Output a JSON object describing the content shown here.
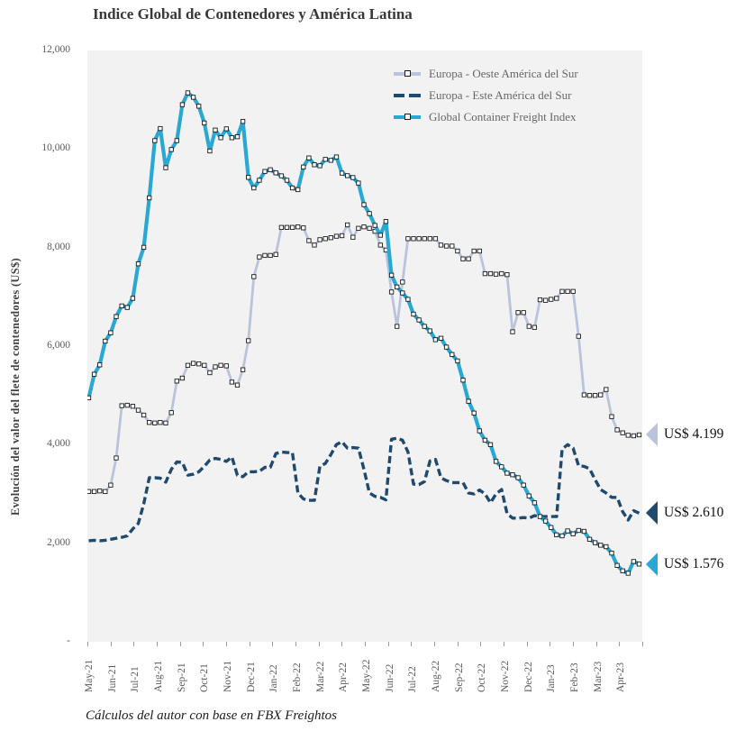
{
  "title": "Indice Global de Contenedores y América Latina",
  "source_note": "Cálculos del autor con base en FBX Freightos",
  "colors": {
    "plot_background": "#f2f2f2",
    "axis_text": "#595959",
    "oeste": "#b9c3dc",
    "este": "#1f4a6e",
    "gcfi": "#29a8d4"
  },
  "annotations": [
    {
      "label": "US$ 4.199",
      "value": 4199,
      "series": "Europa - Oeste América del Sur",
      "color": "#b9c3dc"
    },
    {
      "label": "US$ 2.610",
      "value": 2610,
      "series": "Europa - Este América del Sur",
      "color": "#1f4a6e"
    },
    {
      "label": "US$ 1.576",
      "value": 1576,
      "series": "Global Container Freight Index",
      "color": "#29a8d4"
    }
  ],
  "chart_data": {
    "type": "line",
    "title": "Indice Global de Contenedores y América Latina",
    "xlabel": "",
    "ylabel": "Evolución del valor del flete de contenedores (US$)",
    "ylim": [
      0,
      12000
    ],
    "grid": false,
    "legend_position": "top-right-inside",
    "x_frequency": "weekly",
    "y_ticks": [
      {
        "label": "12,000",
        "value": 12000
      },
      {
        "label": "10,000",
        "value": 10000
      },
      {
        "label": "8,000",
        "value": 8000
      },
      {
        "label": "6,000",
        "value": 6000
      },
      {
        "label": "4,000",
        "value": 4000
      },
      {
        "label": "2,000",
        "value": 2000
      },
      {
        "label": "-",
        "value": 0
      }
    ],
    "categories": [
      "May-21",
      "Jun-21",
      "Jul-21",
      "Aug-21",
      "Sep-21",
      "Oct-21",
      "Nov-21",
      "Dec-21",
      "Jan-22",
      "Feb-22",
      "Mar-22",
      "Apr-22",
      "May-22",
      "Jun-22",
      "Jul-22",
      "Aug-22",
      "Sep-22",
      "Oct-22",
      "Nov-22",
      "Dec-22",
      "Jan-23",
      "Feb-23",
      "Mar-23",
      "Apr-23"
    ],
    "series": [
      {
        "name": "Europa - Oeste América del Sur",
        "color": "#b9c3dc",
        "style": "solid",
        "marker": "square",
        "end_label": "US$ 4.199",
        "values": [
          3050,
          3050,
          3060,
          3050,
          3180,
          3730,
          4790,
          4800,
          4780,
          4700,
          4600,
          4450,
          4440,
          4450,
          4440,
          4650,
          5290,
          5350,
          5610,
          5650,
          5640,
          5610,
          5460,
          5580,
          5610,
          5600,
          5270,
          5210,
          5520,
          6110,
          7410,
          7810,
          7840,
          7840,
          7860,
          8410,
          8410,
          8410,
          8420,
          8400,
          8140,
          8050,
          8160,
          8180,
          8200,
          8230,
          8240,
          8460,
          8210,
          8390,
          8420,
          8390,
          8330,
          8050,
          7950,
          7100,
          6400,
          7300,
          8180,
          8180,
          8180,
          8180,
          8180,
          8180,
          8050,
          8030,
          8030,
          7930,
          7770,
          7770,
          7930,
          7930,
          7470,
          7470,
          7460,
          7470,
          7450,
          6290,
          6680,
          6680,
          6400,
          6380,
          6940,
          6930,
          6950,
          6970,
          7110,
          7110,
          7110,
          6200,
          5010,
          5000,
          5000,
          5010,
          5120,
          4570,
          4300,
          4240,
          4190,
          4180,
          4199
        ]
      },
      {
        "name": "Europa - Este América del Sur",
        "color": "#1f4a6e",
        "style": "dashed",
        "marker": "none",
        "end_label": "US$ 2.610",
        "values": [
          2050,
          2060,
          2050,
          2060,
          2080,
          2100,
          2120,
          2150,
          2290,
          2400,
          2800,
          3330,
          3330,
          3320,
          3240,
          3500,
          3650,
          3640,
          3380,
          3400,
          3450,
          3560,
          3690,
          3720,
          3700,
          3660,
          3750,
          3380,
          3350,
          3450,
          3450,
          3460,
          3540,
          3540,
          3820,
          3850,
          3840,
          3840,
          3020,
          2900,
          2870,
          2870,
          3560,
          3620,
          3800,
          4000,
          4060,
          3930,
          3940,
          3930,
          3500,
          3020,
          2950,
          2930,
          2880,
          4110,
          4130,
          4090,
          3850,
          3200,
          3190,
          3250,
          3670,
          3700,
          3330,
          3270,
          3230,
          3230,
          3230,
          3020,
          3000,
          3080,
          3000,
          2820,
          3000,
          3090,
          2600,
          2510,
          2510,
          2520,
          2510,
          2560,
          2540,
          2540,
          2540,
          2540,
          3910,
          4000,
          3930,
          3570,
          3560,
          3510,
          3290,
          3090,
          3020,
          2930,
          2930,
          2640,
          2470,
          2660,
          2610
        ]
      },
      {
        "name": "Global Container Freight Index",
        "color": "#29a8d4",
        "style": "solid",
        "marker": "square",
        "end_label": "US$ 1.576",
        "values": [
          4950,
          5430,
          5620,
          6100,
          6270,
          6600,
          6815,
          6785,
          6970,
          7670,
          8005,
          9010,
          10170,
          10415,
          9620,
          9990,
          10170,
          10900,
          11140,
          11050,
          10870,
          10530,
          9960,
          10385,
          10230,
          10410,
          10230,
          10250,
          10560,
          9425,
          9210,
          9365,
          9545,
          9580,
          9515,
          9455,
          9365,
          9210,
          9175,
          9635,
          9820,
          9680,
          9660,
          9790,
          9770,
          9840,
          9510,
          9460,
          9420,
          9310,
          8870,
          8690,
          8450,
          8250,
          8530,
          7440,
          7200,
          7080,
          6950,
          6650,
          6530,
          6400,
          6310,
          6130,
          6160,
          5980,
          5830,
          5700,
          5310,
          4880,
          4640,
          4280,
          4090,
          4000,
          3660,
          3550,
          3420,
          3390,
          3330,
          3180,
          2960,
          2820,
          2540,
          2450,
          2320,
          2170,
          2150,
          2250,
          2190,
          2260,
          2240,
          2080,
          2010,
          1960,
          1930,
          1800,
          1550,
          1440,
          1390,
          1630,
          1576
        ]
      }
    ]
  }
}
